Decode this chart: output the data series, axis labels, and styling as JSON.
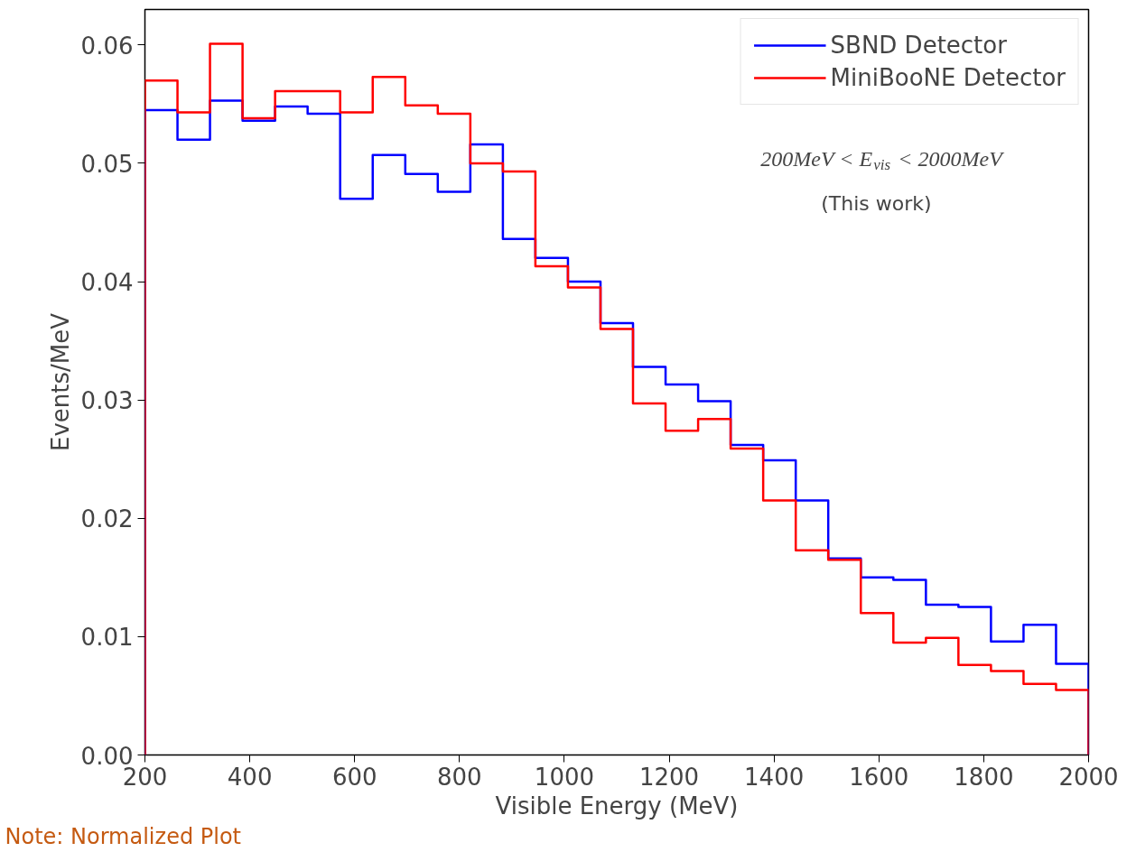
{
  "chart_data": {
    "type": "histogram",
    "xlabel": "Visible Energy (MeV)",
    "ylabel": "Events/MeV",
    "bins": [
      200,
      262.1,
      324.1,
      386.2,
      448.3,
      510.3,
      572.4,
      634.5,
      696.6,
      758.6,
      820.7,
      882.8,
      944.8,
      1006.9,
      1069.0,
      1131.0,
      1193.1,
      1255.2,
      1317.2,
      1379.3,
      1441.4,
      1503.4,
      1565.5,
      1627.6,
      1689.7,
      1751.7,
      1813.8,
      1875.9,
      1937.9,
      2000
    ],
    "series": [
      {
        "name": "SBND Detector",
        "color": "#0000ff",
        "values": [
          0.0545,
          0.052,
          0.0553,
          0.0536,
          0.0548,
          0.0542,
          0.047,
          0.0507,
          0.0491,
          0.0476,
          0.0516,
          0.0436,
          0.042,
          0.04,
          0.0365,
          0.0328,
          0.0313,
          0.0299,
          0.0262,
          0.0249,
          0.0215,
          0.0166,
          0.015,
          0.0148,
          0.0127,
          0.0125,
          0.0096,
          0.011,
          0.0077
        ]
      },
      {
        "name": "MiniBooNE Detector",
        "color": "#ff0000",
        "values": [
          0.057,
          0.0543,
          0.0601,
          0.0538,
          0.0561,
          0.0561,
          0.0543,
          0.0573,
          0.0549,
          0.0542,
          0.05,
          0.0493,
          0.0413,
          0.0395,
          0.036,
          0.0297,
          0.0274,
          0.0284,
          0.0259,
          0.0215,
          0.0173,
          0.0165,
          0.012,
          0.0095,
          0.0099,
          0.0076,
          0.0071,
          0.006,
          0.0055
        ]
      }
    ],
    "xlim": [
      200,
      2000
    ],
    "ylim": [
      0,
      0.063
    ],
    "xticks": [
      200,
      400,
      600,
      800,
      1000,
      1200,
      1400,
      1600,
      1800,
      2000
    ],
    "yticks": [
      {
        "value": 0,
        "label": "0.00"
      },
      {
        "value": 0.01,
        "label": "0.01"
      },
      {
        "value": 0.02,
        "label": "0.02"
      },
      {
        "value": 0.03,
        "label": "0.03"
      },
      {
        "value": 0.04,
        "label": "0.04"
      },
      {
        "value": 0.05,
        "label": "0.05"
      },
      {
        "value": 0.06,
        "label": "0.06"
      }
    ],
    "annotations": [
      "200MeV < E$_{vis}$ < 2000MeV",
      "(This work)",
      "Note: Normalized Plot"
    ],
    "legend": "top right",
    "grid": false
  }
}
